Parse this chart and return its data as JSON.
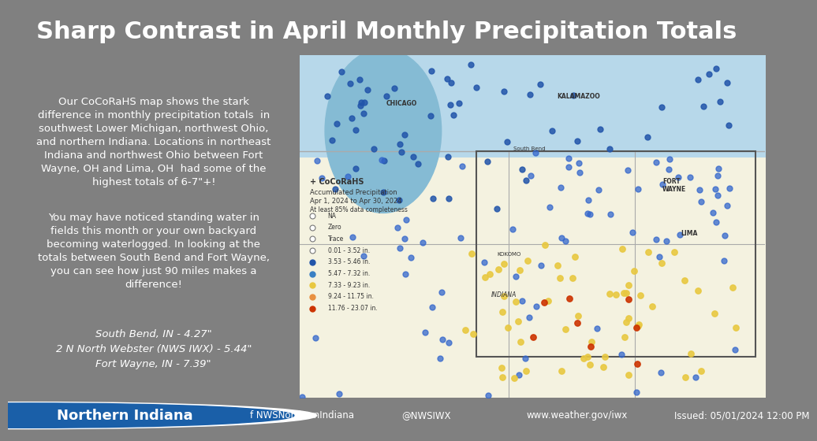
{
  "title": "Sharp Contrast in April Monthly Precipitation Totals",
  "title_bg_color": "#1a5fa8",
  "title_text_color": "#ffffff",
  "left_bg_color": "#808080",
  "left_text_color": "#ffffff",
  "body_text": "Our CoCoRaHS map shows the stark\ndifference in monthly precipitation totals  in\nsouthwest Lower Michigan, northwest Ohio,\nand northern Indiana. Locations in northeast\nIndiana and northwest Ohio between Fort\nWayne, OH and Lima, OH  had some of the\nhighest totals of 6-7\"+!",
  "body_text2": "You may have noticed standing water in\nfields this month or your own backyard\nbecoming waterlogged. In looking at the\ntotals between South Bend and Fort Wayne,\nyou can see how just 90 miles makes a\ndifference!",
  "stats_text": "South Bend, IN - 4.27\"\n2 N North Webster (NWS IWX) - 5.44\"\nFort Wayne, IN - 7.39\"",
  "footer_bg_color": "#1a5fa8",
  "footer_text_color": "#ffffff",
  "footer_office": "Northern Indiana",
  "footer_fb": "f NWSNorthernIndiana",
  "footer_tw": "@NWSIWX",
  "footer_web": "www.weather.gov/iwx",
  "footer_issued": "Issued: 05/01/2024 12:00 PM",
  "map_placeholder_color": "#d4e8f0",
  "figure_width": 9.6,
  "figure_height": 5.4
}
